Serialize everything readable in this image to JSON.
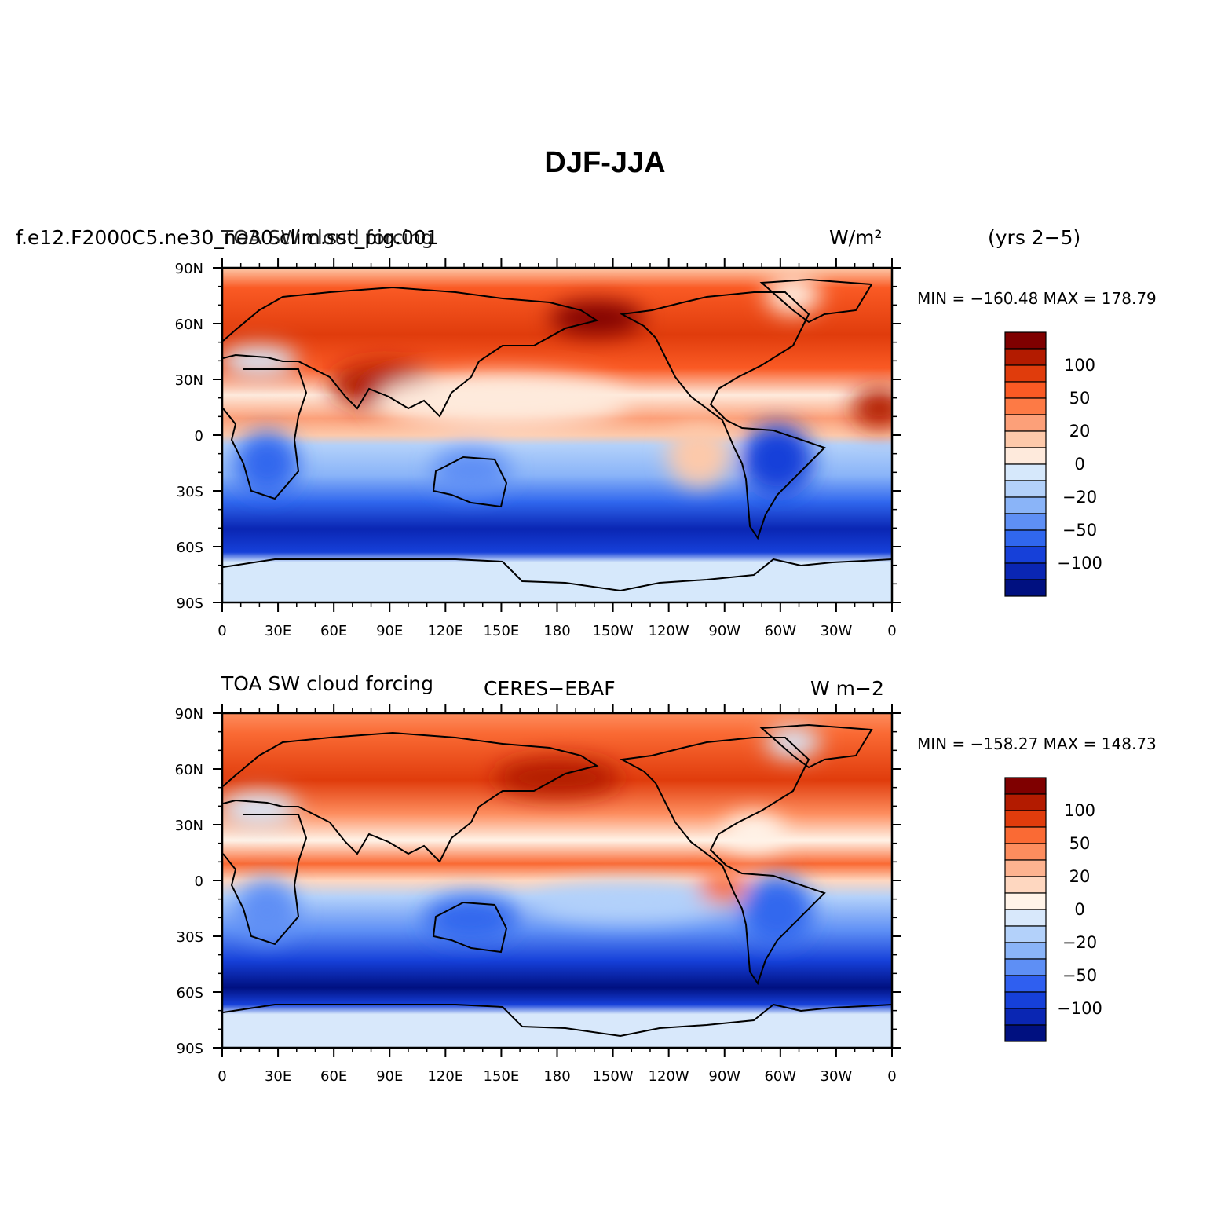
{
  "title": "DJF-JJA",
  "panels": [
    {
      "id": "model",
      "left_string": "f.e12.F2000C5.ne30_ne30.clim.sst_pig.001",
      "center_string": "TOA SW cloud forcing",
      "right_string": "W/m²",
      "years": "(yrs 2−5)",
      "min_max": "MIN = −160.48  MAX = 178.79",
      "min": -160.48,
      "max": 178.79
    },
    {
      "id": "obs",
      "left_string": "TOA SW cloud forcing",
      "center_string": "CERES−EBAF",
      "right_string": "W m−2",
      "years": "",
      "min_max": "MIN = −158.27  MAX = 148.73",
      "min": -158.27,
      "max": 148.73
    }
  ],
  "lat_labels": [
    "90N",
    "60N",
    "30N",
    "0",
    "30S",
    "60S",
    "90S"
  ],
  "lon_labels": [
    "0",
    "30E",
    "60E",
    "90E",
    "120E",
    "150E",
    "180",
    "150W",
    "120W",
    "90W",
    "60W",
    "30W",
    "0"
  ],
  "colorbar": {
    "labels": [
      "100",
      "50",
      "20",
      "0",
      "−20",
      "−50",
      "−100"
    ],
    "colors_model": [
      "#7f0000",
      "#b31b00",
      "#e03c0c",
      "#fa5a24",
      "#fd7a45",
      "#fca079",
      "#fdc9aa",
      "#feeadc",
      "#d6e8fb",
      "#b3d1fa",
      "#8ab4f8",
      "#5e8ff5",
      "#3067ee",
      "#1640d9",
      "#0a26b3",
      "#001080"
    ],
    "colors_obs": [
      "#7f0000",
      "#b31b00",
      "#e03c0c",
      "#fa6a34",
      "#fd8d5e",
      "#fdb390",
      "#fed7c0",
      "#fff3e8",
      "#d8e8fb",
      "#b3d1fa",
      "#8ab4f8",
      "#5e8ff5",
      "#2f5ff0",
      "#1640d9",
      "#0a26b3",
      "#001080"
    ]
  },
  "chart_data": [
    {
      "type": "heatmap",
      "title": "TOA SW cloud forcing",
      "xlabel": "",
      "ylabel": "",
      "xlim": [
        0,
        360
      ],
      "ylim": [
        -90,
        90
      ],
      "x_ticks": [
        "0",
        "30E",
        "60E",
        "90E",
        "120E",
        "150E",
        "180",
        "150W",
        "120W",
        "90W",
        "60W",
        "30W",
        "0"
      ],
      "y_ticks": [
        "90N",
        "60N",
        "30N",
        "0",
        "30S",
        "60S",
        "90S"
      ],
      "units": "W/m²",
      "min": -160.48,
      "max": 178.79,
      "contour_levels": [
        -125,
        -100,
        -75,
        -50,
        -35,
        -20,
        -10,
        0,
        10,
        20,
        35,
        50,
        75,
        100,
        125
      ]
    },
    {
      "type": "heatmap",
      "title": "TOA SW cloud forcing",
      "xlabel": "",
      "ylabel": "",
      "xlim": [
        0,
        360
      ],
      "ylim": [
        -90,
        90
      ],
      "x_ticks": [
        "0",
        "30E",
        "60E",
        "90E",
        "120E",
        "150E",
        "180",
        "150W",
        "120W",
        "90W",
        "60W",
        "30W",
        "0"
      ],
      "y_ticks": [
        "90N",
        "60N",
        "30N",
        "0",
        "30S",
        "60S",
        "90S"
      ],
      "units": "W m−2",
      "min": -158.27,
      "max": 148.73,
      "contour_levels": [
        -125,
        -100,
        -75,
        -50,
        -35,
        -20,
        -10,
        0,
        10,
        20,
        35,
        50,
        75,
        100,
        125
      ]
    }
  ]
}
